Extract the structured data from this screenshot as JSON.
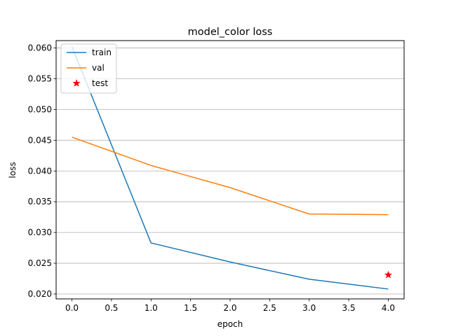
{
  "chart_data": {
    "type": "line",
    "title": "model_color loss",
    "xlabel": "epoch",
    "ylabel": "loss",
    "xlim": [
      -0.2,
      4.2
    ],
    "ylim": [
      0.0192,
      0.0612
    ],
    "xticks": [
      0.0,
      0.5,
      1.0,
      1.5,
      2.0,
      2.5,
      3.0,
      3.5,
      4.0
    ],
    "xtick_labels": [
      "0.0",
      "0.5",
      "1.0",
      "1.5",
      "2.0",
      "2.5",
      "3.0",
      "3.5",
      "4.0"
    ],
    "yticks": [
      0.02,
      0.025,
      0.03,
      0.035,
      0.04,
      0.045,
      0.05,
      0.055,
      0.06
    ],
    "ytick_labels": [
      "0.020",
      "0.025",
      "0.030",
      "0.035",
      "0.040",
      "0.045",
      "0.050",
      "0.055",
      "0.060"
    ],
    "grid": "y-axis horizontal",
    "legend_position": "top-left",
    "series": [
      {
        "name": "train",
        "kind": "line",
        "color": "#1f77b4",
        "x": [
          0,
          1,
          2,
          3,
          4
        ],
        "y": [
          0.0602,
          0.0283,
          0.0252,
          0.0224,
          0.0208
        ]
      },
      {
        "name": "val",
        "kind": "line",
        "color": "#ff7f0e",
        "x": [
          0,
          1,
          2,
          3,
          4
        ],
        "y": [
          0.0455,
          0.0409,
          0.0373,
          0.033,
          0.0329
        ]
      },
      {
        "name": "test",
        "kind": "marker",
        "marker": "star",
        "color": "#ff0000",
        "x": [
          4
        ],
        "y": [
          0.0231
        ]
      }
    ]
  }
}
